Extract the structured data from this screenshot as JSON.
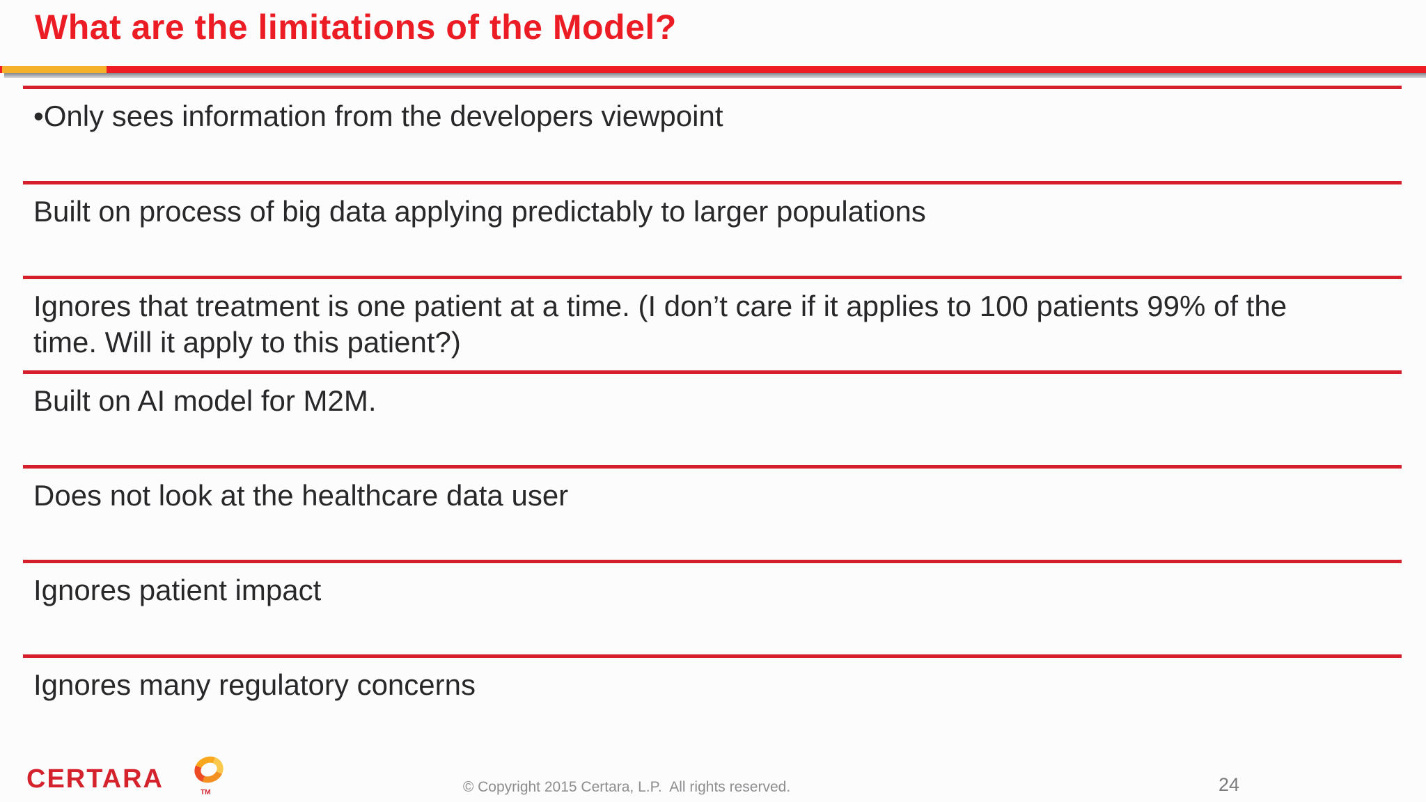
{
  "slide": {
    "title": "What are the limitations of the Model?",
    "items": [
      "•Only sees information from the developers viewpoint",
      "Built on process of big data applying predictably to larger populations",
      "Ignores that treatment is one patient at a time. (I don’t care if it applies to 100 patients 99% of the time. Will it apply to this patient?)",
      "Built on AI model for M2M.",
      "Does not look at the healthcare data user",
      "Ignores patient impact",
      "Ignores many regulatory concerns"
    ],
    "footer": {
      "logo_text": "CERTARA",
      "logo_tm": "TM",
      "copyright": "© Copyright 2015 Certara, L.P.  All rights reserved.",
      "page_number": "24"
    }
  },
  "icons": {
    "logo_ring": "certara-orange-ring"
  },
  "colors": {
    "title_red": "#ec1c24",
    "bar_red": "#ee1c25",
    "bar_yellow": "#f3b229",
    "divider_red": "#d51f2d",
    "body_text": "#28282b",
    "logo_red": "#d5232e",
    "footer_gray": "#8d8d90"
  }
}
